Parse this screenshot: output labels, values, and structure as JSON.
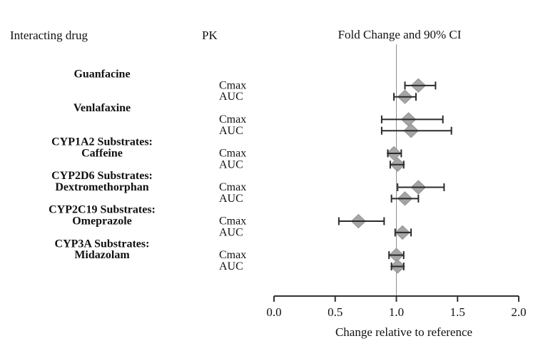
{
  "headers": {
    "interacting_drug": "Interacting drug",
    "pk": "PK",
    "fold_change": "Fold Change and 90% CI"
  },
  "chart_data": {
    "type": "scatter",
    "subtype": "forest-plot",
    "title": "Fold Change and 90% CI",
    "xlabel": "Change relative to reference",
    "ci_level": "90%",
    "xlim": [
      0.0,
      2.0
    ],
    "tick_labels": [
      "0.0",
      "0.5",
      "1.0",
      "1.5",
      "2.0"
    ],
    "tick_values": [
      0.0,
      0.5,
      1.0,
      1.5,
      2.0
    ],
    "reference_line": 1.0,
    "grid": false,
    "legend": "none",
    "groups": [
      {
        "name_lines": [
          "Guanfacine"
        ],
        "rows": [
          {
            "pk": "Cmax",
            "estimate": 1.18,
            "ci_low": 1.07,
            "ci_high": 1.32
          },
          {
            "pk": "AUC",
            "estimate": 1.07,
            "ci_low": 0.98,
            "ci_high": 1.16
          }
        ]
      },
      {
        "name_lines": [
          "Venlafaxine"
        ],
        "rows": [
          {
            "pk": "Cmax",
            "estimate": 1.1,
            "ci_low": 0.88,
            "ci_high": 1.38
          },
          {
            "pk": "AUC",
            "estimate": 1.12,
            "ci_low": 0.88,
            "ci_high": 1.45
          }
        ]
      },
      {
        "name_lines": [
          "CYP1A2 Substrates:",
          "Caffeine"
        ],
        "rows": [
          {
            "pk": "Cmax",
            "estimate": 0.98,
            "ci_low": 0.93,
            "ci_high": 1.04
          },
          {
            "pk": "AUC",
            "estimate": 1.01,
            "ci_low": 0.95,
            "ci_high": 1.06
          }
        ]
      },
      {
        "name_lines": [
          "CYP2D6 Substrates:",
          "Dextromethorphan"
        ],
        "rows": [
          {
            "pk": "Cmax",
            "estimate": 1.18,
            "ci_low": 1.01,
            "ci_high": 1.39
          },
          {
            "pk": "AUC",
            "estimate": 1.07,
            "ci_low": 0.96,
            "ci_high": 1.18
          }
        ]
      },
      {
        "name_lines": [
          "CYP2C19 Substrates:",
          "Omeprazole"
        ],
        "rows": [
          {
            "pk": "Cmax",
            "estimate": 0.69,
            "ci_low": 0.53,
            "ci_high": 0.9
          },
          {
            "pk": "AUC",
            "estimate": 1.05,
            "ci_low": 0.99,
            "ci_high": 1.12
          }
        ]
      },
      {
        "name_lines": [
          "CYP3A Substrates:",
          "Midazolam"
        ],
        "rows": [
          {
            "pk": "Cmax",
            "estimate": 1.0,
            "ci_low": 0.94,
            "ci_high": 1.06
          },
          {
            "pk": "AUC",
            "estimate": 1.01,
            "ci_low": 0.96,
            "ci_high": 1.06
          }
        ]
      }
    ],
    "colors": {
      "diamond_fill": "#a5a5a5",
      "diamond_edge": "#939393",
      "error_bar": "#2b2b2b",
      "reference_line": "#8f8f8f",
      "axis": "#333333",
      "text": "#111111"
    }
  }
}
